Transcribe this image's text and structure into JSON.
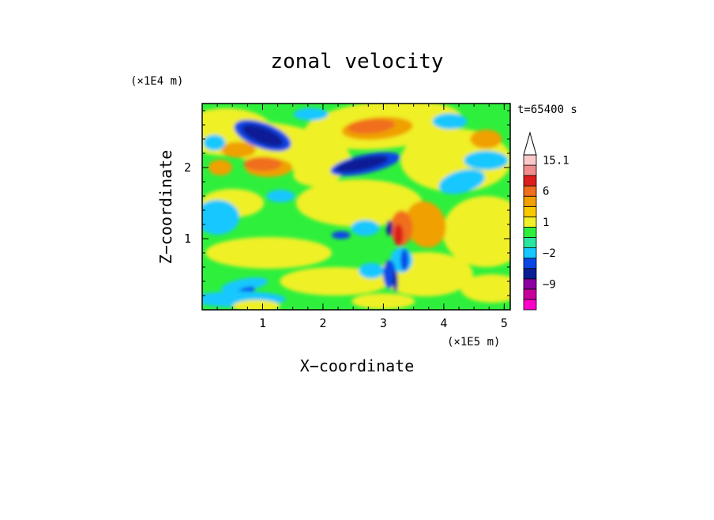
{
  "chart_data": {
    "type": "heatmap",
    "title": "zonal velocity",
    "xlabel": "X−coordinate",
    "ylabel": "Z−coordinate",
    "x_unit": "(×1E5 m)",
    "y_unit": "(×1E4 m)",
    "time_label": "t=65400 s",
    "xlim": [
      0,
      5.1
    ],
    "ylim": [
      0,
      2.9
    ],
    "x_ticks": [
      {
        "value": 1,
        "label": "1"
      },
      {
        "value": 2,
        "label": "2"
      },
      {
        "value": 3,
        "label": "3"
      },
      {
        "value": 4,
        "label": "4"
      },
      {
        "value": 5,
        "label": "5"
      }
    ],
    "y_ticks": [
      {
        "value": 1,
        "label": "1"
      },
      {
        "value": 2,
        "label": "2"
      }
    ],
    "colorbar": {
      "levels": [
        -15,
        -12,
        -9,
        -6,
        -3,
        -2,
        -1,
        0,
        1,
        2,
        3,
        6,
        9,
        12,
        15.1
      ],
      "colors": [
        "#ff00c8",
        "#c8009b",
        "#8c00a0",
        "#0a1e96",
        "#0a46e6",
        "#14c8ff",
        "#28e6a0",
        "#2ef03c",
        "#f0f028",
        "#fac800",
        "#f0a000",
        "#f06e1e",
        "#dc1e1e",
        "#f08c8c",
        "#fac8c8"
      ],
      "labels": [
        {
          "value": -9,
          "label": "−9"
        },
        {
          "value": -2,
          "label": "−2"
        },
        {
          "value": 1,
          "label": "1"
        },
        {
          "value": 6,
          "label": "6"
        },
        {
          "value": 15.1,
          "label": "15.1"
        }
      ]
    }
  }
}
